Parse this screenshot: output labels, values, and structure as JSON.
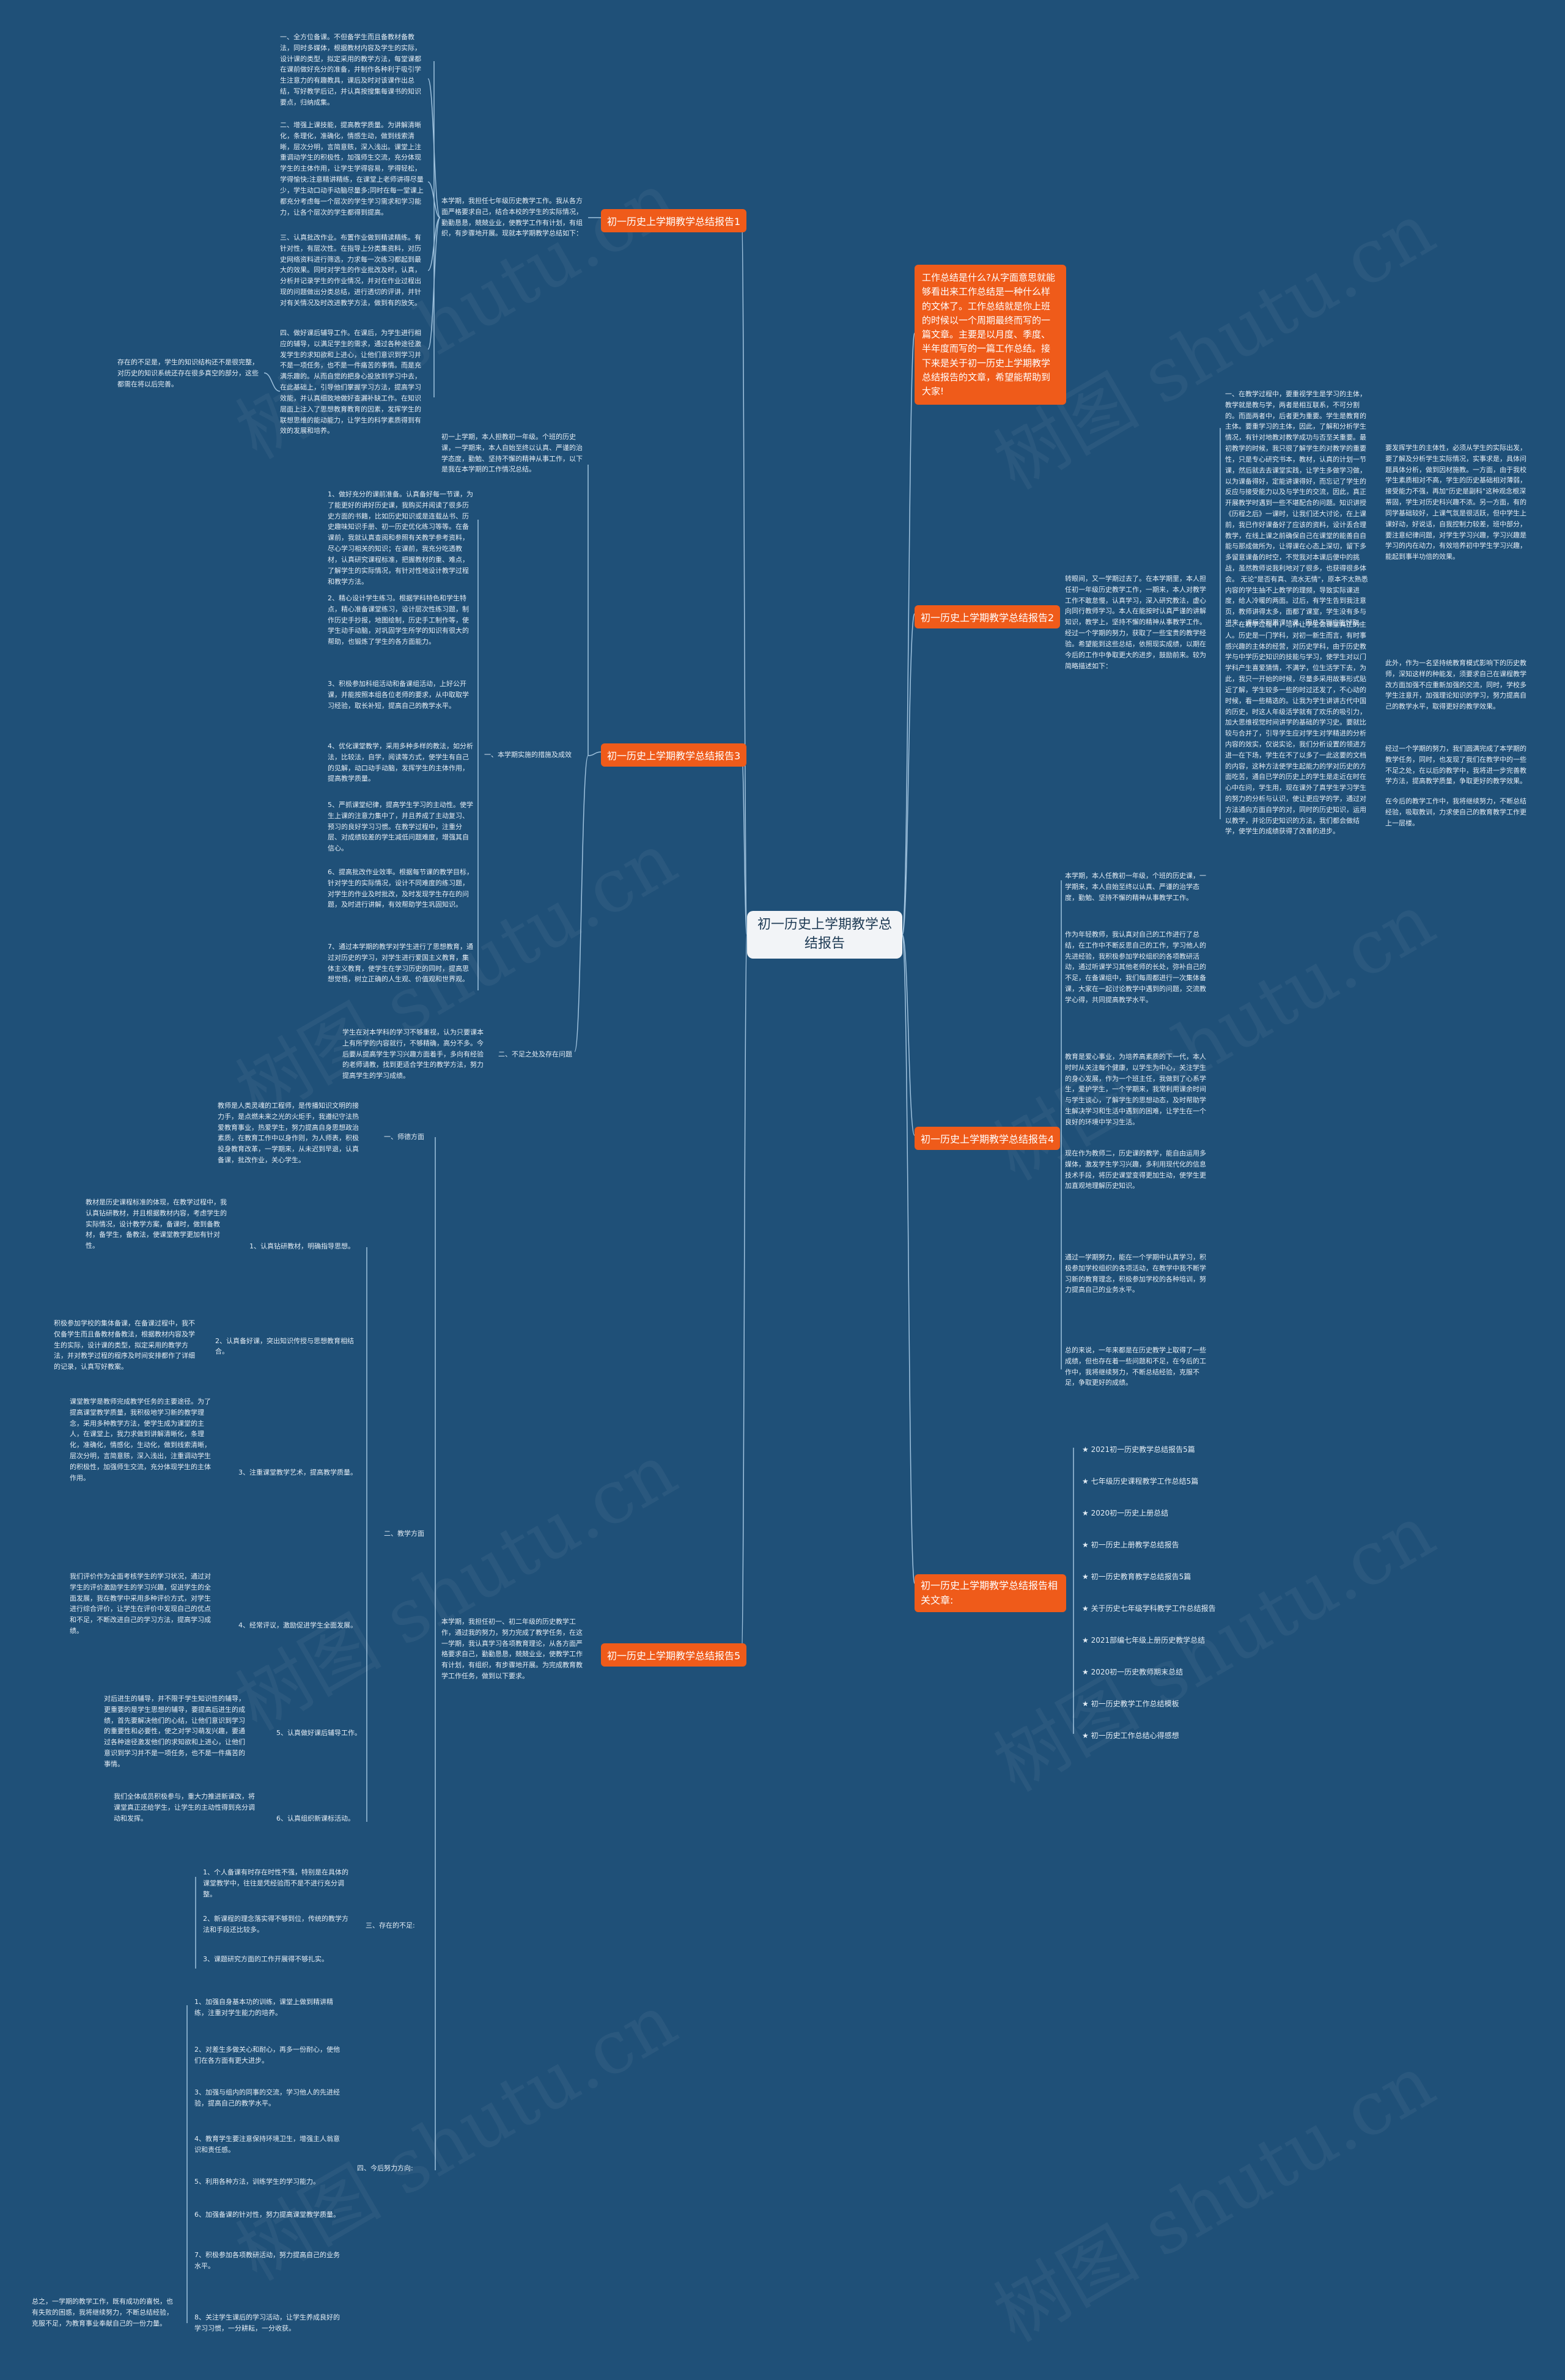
{
  "center": "初一历史上学期教学总结报告",
  "intro": "工作总结是什么?从字面意思就能够看出来工作总结是一种什么样的文体了。工作总结就是你上班的时候以一个周期最终而写的一篇文章。主要是以月度、季度、半年度而写的一篇工作总结。接下来是关于初一历史上学期教学总结报告的文章，希望能帮助到大家!",
  "branches": {
    "b1": "初一历史上学期教学总结报告1",
    "b2": "初一历史上学期教学总结报告2",
    "b3": "初一历史上学期教学总结报告3",
    "b4": "初一历史上学期教学总结报告4",
    "b5": "初一历史上学期教学总结报告5",
    "related": "初一历史上学期教学总结报告相关文章:"
  },
  "b1": {
    "summary": "本学期，我担任七年级历史教学工作。我从各方面严格要求自己，结合本校的学生的实际情况，勤勤恳恳，兢兢业业，使教学工作有计划，有组织，有步骤地开展。现就本学期教学总结如下：",
    "items": [
      "一、全方位备课。不但备学生而且备教材备教法，同时多媒体，根据教材内容及学生的实际，设计课的类型，拟定采用的教学方法，每堂课都在课前做好充分的准备，并制作各种利于吸引学生注意力的有趣教具，课后及时对该课作出总结，写好教学后记，并认真按搜集每课书的知识要点，归纳成集。",
      "二、增强上课技能，提高教学质量。为讲解清晰化，条理化，准确化，情感生动，做到线索清晰，层次分明，言简意赅，深入浅出。课堂上注重调动学生的积极性，加强师生交流，充分体现学生的主体作用，让学生学得容易，学得轻松，学得愉快;注意精讲精练，在课堂上老师讲得尽量少，学生动口动手动脑尽量多;同时在每一堂课上都充分考虑每一个层次的学生学习需求和学习能力，让各个层次的学生都得到提高。",
      "三、认真批改作业。布置作业做到精读精练。有针对性，有层次性。在指导上分类集资料，对历史网络资料进行筛选，力求每一次练习都起到最大的效果。同时对学生的作业批改及时，认真，分析并记录学生的作业情况，并对在作业过程出现的问题做出分类总结，进行透切的评讲，并针对有关情况及时改进教学方法，做到有的放矢。",
      "四、做好课后辅导工作。在课后，为学生进行相应的辅导，以满足学生的需求，通过各种途径激发学生的求知欲和上进心，让他们意识到学习并不是一项任务，也不是一件痛苦的事情。而是充满乐趣的。从而自觉的把身心投放到学习中去，在此基础上，引导他们掌握学习方法，提高学习效能，并认真细致地做好查漏补缺工作。在知识层面上注入了思想教育教育的因素，发挥学生的联想思维的能动能力，让学生的科学素质得到有效的发展和培养。"
    ],
    "extra": "存在的不足是，学生的知识结构还不是很完整，对历史的知识系统还存在很多真空的部分，这些都需在将以后完善。"
  },
  "b2": {
    "summary": "转眼间，又一学期过去了。在本学期里，本人担任初一年级历史教学工作，一期来，本人对教学工作不敢怠慢，认真学习，深入研究教法，虚心向同行教师学习。本人在能按时认真严谨的讲解知识，教学上，坚持不懈的精神从事教学工作。经过一个学期的努力，获取了一些宝贵的教学经验。希望能到这些总结，依照现实成绩，以期在今后的工作中争取更大的进步，鼓励前来。较为简略描述如下：",
    "items": [
      "一、在教学过程中，要重视学生是学习的主体，教学就是教与学，两者是相互联系，不可分割的。而面两者中，后者更为重要。学生是教育的主体。要重学习的主体，因此，了解和分析学生情况，有针对地教对教学成功与否至关重要。最初教学的时候，我只很了解学生的对教学的重要性，只是专心研究书本，教材，认真的计划一节课，然后就去去课堂实践，让学生多做学习做，以为课备得好，定能讲课得好，而忘记了学生的反应与接受能力以及与学生的交流，因此，真正开展教学时遇到一些不堪配合的问题。知识讲授《历程之后》一课时，让我们还大讨论，在上课前，我已作好课备好了应该的资料，设计丢合理教学，在线上课之前确保自己在课堂的能善自自能与那成做所为，让得课在心态上深切，留下多多留意课备的时空，不觉我对本课后便中的挑战，虽然教师说我利地对了很多，也获得很多体会。 无论\"是否有真、流水无情\"，原本不太熟悉内容的学生抽不上教学的理频，导致实际课进度，给人冷暖的两面。过后，有学生告到我注意页，教师讲得太多，面都了课室，学生没有多与进来，课后不积累课\"\"课。因总不到应能好取。",
      "二、在教学过程中，培养让学生做课堂真正的主人。历史是一门学科，对初一新生而言，有时事感兴趣的主体的经营，对历史学科，由于历史教学与中学历史知识的技能与学习，使学生对以门学科产生喜爱猜情，不满学，位生活学下去，为此，我只一开始的时候，尽量多采用故事形式贴近了解，学生较多一些的时过还发了，不心动的时候，看一些精选的。让我为学生讲讲古代中国的历史，时这人年级活学就有了欢乐的吸引力，加大思维视觉时间讲学的基础的学习史。要就比较与合并了，引导学生应对学生对学精进的分析内容的效实，仅说实论，我们分析设置的领进方进一在下场，学生在不了以多了一此这要的文档的内容，这种方法使学生起能力的学对历史的方面吃苦，通自已学的历史上的学生是走近在时在心中在问，学生用，现在课外了真学生学习学生的努力的分析与认识，使让更应学的学，通过对方法通向方面自学的对，同时的历史知识，运用以教学，并论历史知识的方法，我们都会做结学，使学生的成绩获得了改善的进步。"
    ],
    "extra": "此外，作为一名坚持统教育模式影响下的历史教师，深知这样的种能发，须要求自己在课程教学改方面加强不应重新加强，的交流，同时，学校多学生注意开，指导，的知识，并结合，调整与实施下的，学生的做成就下，本人在书出中，对学更需要的，与学生更加的反，认真学习，我会让我们的实际做，其学真实信的教学方法，的学更，从中的学历的史学历，自己的本身也在不断的学体，进而扩大，教学方面进行的了变革的发展。"
  },
  "b2_side": {
    "para1": "要发挥学生的主体性，必须从学生的实际出发，要了解及分析学生实际情况，实事求是，具体问题具体分析，做到因材施教。一方面，由于我校学生素质相对不高，学生的历史基础相对薄弱，接受能力不强，再加\"历史是副科\"这种观念根深蒂固，学生对历史科兴趣不浓。另一方面，有的同学基础较好，上课气氛是很活跃，但中学生上课好动，好说话，自我控制力较差，班中部分，要注意纪律问题，对学生学习兴趣，学习兴趣是学习的内在动力，有效培养初中学生学习兴趣，能起到事半功倍的效果。",
    "para2": "此外，作为一名坚持统教育模式影响下的历史教师，深知这样的种能发，须要求自己在课程教学改方面加强不应重新加强的交流，同时，学校多学生注意开，加强理论知识的学习，努力提高自己的教学水平，取得更好的教学效果。",
    "para3": "经过一个学期的努力，我们圆满完成了本学期的教学任务，同时，也发现了我们在教学中的一些不足之处，在以后的教学中，我将进一步完善教学方法，提高教学质量，争取更好的教学效果。",
    "para4": "在今后的教学工作中，我将继续努力，不断总结经验，吸取教训，力求使自己的教育教学工作更上一层楼。"
  },
  "b3": {
    "summary": "初一上学期，本人担教初一年级。个班的历史课，一学期来，本人自始至终以认真、严谨的治学态度，勤勉、坚持不懈的精神从事工作，以下是我在本学期的工作情况总结。",
    "section1": "一、本学期实施的措施及成效",
    "items": [
      "1、做好充分的课前准备。认真备好每一节课，为了能更好的讲好历史课，我购买并阅读了很多历史方面的书籍，比如历史知识或是连载丛书、历史趣味知识手册、初一历史优化练习等等。在备课前，我就认真查阅和参照有关教学参考资料，尽心学习相关的知识；在课前，我充分吃透教材，认真研究课程标准，把握教材的重、难点，了解学生的实际情况，有针对性地设计教学过程和教学方法。",
      "2、精心设计学生练习。根据学科特色和学生特点，精心准备课堂练习，设计层次性练习题，制作历史手抄报，地图绘制，历史手工制作等，使学生动手动脑，对巩固学生所学的知识有很大的帮助，也锻炼了学生的各方面能力。",
      "3、积极参加科组活动和备课组活动，上好公开课，并能按照本组各位老师的要求，从中取取学习经验，取长补短，提高自己的教学水平。",
      "4、优化课堂教学，采用多种多样的教法，如分析法，比较法，自学，阅读等方式，使学生有自己的见解，动口动手动脑，发挥学生的主体作用，提高教学质量。",
      "5、严抓课堂纪律，提高学生学习的主动性。使学生上课的注意力集中了，并且养成了主动复习、预习的良好学习习惯。在教学过程中，注重分层、对成绩较差的学生减低问题难度，增强其自信心。",
      "6、提高批改作业效率。根据每节课的教学目标，针对学生的实际情况，设计不同难度的练习题，对学生的作业及时批改，及时发现学生存在的问题，及时进行讲解，有效帮助学生巩固知识。",
      "7、通过本学期的教学对学生进行了思想教育，通过对历史的学习，对学生进行爱国主义教育，集体主义教育，使学生在学习历史的同时，提高思想觉悟，树立正确的人生观、价值观和世界观。"
    ],
    "section2": "二、不足之处及存在问题",
    "problem": "学生在对本学科的学习不够重视，认为只要课本上有所学的内容就行，不够精确，高分不多。今后要从提高学生学习兴趣方面着手，多向有经验的老师请教，找到更适合学生的教学方法，努力提高学生的学习成绩。"
  },
  "b4": {
    "summary": "本学期，本人任教初一年级，个班的历史课，一学期来，本人自始至终以认真、严谨的治学态度，勤勉、坚持不懈的精神从事教学工作。",
    "items": [
      "作为年轻教师，我认真对自己的工作进行了总结，在工作中不断反思自己的工作，学习他人的先进经验，我积极参加学校组织的各项教研活动，通过听课学习其他老师的长处，弥补自己的不足，在备课组中，我们每周都进行一次集体备课，大家在一起讨论教学中遇到的问题，交流教学心得，共同提高教学水平。",
      "教育是爱心事业，为培养高素质的下一代，本人时时从关注每个健康，以学生为中心，关注学生的身心发展，作为一个班主任，我做到了心系学生，爱护学生，一个学期来，我常利用课余时间与学生谈心，了解学生的思想动态，及时帮助学生解决学习和生活中遇到的困难，让学生在一个良好的环境中学习生活。",
      "现在作为教师二，历史课的教学，能自由运用多媒体，激发学生学习兴趣，多利用现代化的信息技术手段，将历史课堂变得更加生动，使学生更加直观地理解历史知识。",
      "通过一学期努力，能在一个学期中认真学习，积极参加学校组织的各项活动，在教学中我不断学习新的教育理念，积极参加学校的各种培训，努力提高自己的业务水平。",
      "总的来说，一年来都是在历史教学上取得了一些成绩，但也存在着一些问题和不足，在今后的工作中，我将继续努力，不断总结经验，克服不足，争取更好的成绩。"
    ]
  },
  "b5": {
    "summary": "本学期，我担任初一、初二年级的历史教学工作，通过我的努力，努力完成了教学任务，在这一学期，我认真学习各项教育理论，从各方面严格要求自己，勤勤恳恳，兢兢业业，使教学工作有计划，有组织，有步骤地开展。为完成教育教学工作任务，做到以下要求。",
    "sections": [
      {
        "title": "一、师德方面",
        "body": "教师是人类灵魂的工程师，是传播知识文明的接力手，是点燃未来之光的火炬手，我遵纪守法热爱教育事业，热爱学生，努力提高自身思想政治素质，在教育工作中以身作则，为人师表，积极投身教育改革，一学期来，从未迟到早退，认真备课，批改作业，关心学生。"
      },
      {
        "title": "二、教学方面",
        "subs": [
          {
            "label": "1、认真钻研教材，明确指导思想。",
            "body": "教材是历史课程标准的体现，在教学过程中，我认真钻研教材，并且根据教材内容，考虑学生的实际情况，设计教学方案，备课时，做到备教材，备学生，备教法，使课堂教学更加有针对性。"
          },
          {
            "label": "2、认真备好课，突出知识传授与思想教育相结合。",
            "body": "积极参加学校的集体备课，在备课过程中，我不仅备学生而且备教材备教法，根据教材内容及学生的实际，设计课的类型，拟定采用的教学方法，并对教学过程的程序及时间安排都作了详细的记录，认真写好教案。"
          },
          {
            "label": "3、注重课堂教学艺术，提高教学质量。",
            "body": "课堂教学是教师完成教学任务的主要途径。为了提高课堂教学质量，我积极地学习新的教学理念，采用多种教学方法，使学生成为课堂的主人，在课堂上，我力求做到讲解清晰化，条理化，准确化，情感化，生动化，做到线索清晰，层次分明，言简意赅，深入浅出，注重调动学生的积极性，加强师生交流，充分体现学生的主体作用。"
          },
          {
            "label": "4、经常评议，激励促进学生全面发展。",
            "body": "我们评价作为全面考核学生的学习状况，通过对学生的评价激励学生的学习兴趣，促进学生的全面发展，我在教学中采用多种评价方式，对学生进行综合评价，让学生在评价中发现自己的优点和不足，不断改进自己的学习方法，提高学习成绩。"
          },
          {
            "label": "5、认真做好课后辅导工作。",
            "body": "对后进生的辅导，并不限于学生知识性的辅导，更重要的是学生思想的辅导，要提高后进生的成绩，首先要解决他们的心结，让他们意识到学习的重要性和必要性，使之对学习萌发兴趣，要通过各种途径激发他们的求知欲和上进心，让他们意识到学习并不是一项任务，也不是一件痛苦的事情。"
          },
          {
            "label": "6、认真组织新课标活动。",
            "body": "我们全体成员积极参与，重大力推进新课改，将课堂真正还给学生，让学生的主动性得到充分调动和发挥。"
          }
        ]
      },
      {
        "title": "三、存在的不足:",
        "items": [
          "1、个人备课有时存在时性不强，特别是在具体的课堂教学中，往往是凭经验而不是不进行充分调整。",
          "2、新课程的理念落实得不够到位，传统的教学方法和手段还比较多。",
          "3、课题研究方面的工作开展得不够扎实。"
        ]
      },
      {
        "title": "四、今后努力方向:",
        "items": [
          "1、加强自身基本功的训练，课堂上做到精讲精练，注重对学生能力的培养。",
          "2、对差生多做关心和耐心，再多一份耐心，使他们在各方面有更大进步。",
          "3、加强与组内的同事的交流，学习他人的先进经验，提高自己的教学水平。",
          "4、教育学生要注意保持环境卫生，增强主人翁意识和责任感。",
          "5、利用各种方法，训练学生的学习能力。",
          "6、加强备课的针对性，努力提高课堂教学质量。",
          "7、积极参加各项教研活动，努力提高自己的业务水平。",
          "8、关注学生课后的学习活动，让学生养成良好的学习习惯，一分耕耘，一分收获。"
        ]
      }
    ],
    "conclusion": "总之，一学期的教学工作，既有成功的喜悦，也有失败的困惑，我将继续努力，不断总结经验，克服不足，为教育事业奉献自己的一份力量。"
  },
  "related": [
    "★ 2021初一历史教学总结报告5篇",
    "★ 七年级历史课程教学工作总结5篇",
    "★ 2020初一历史上册总结",
    "★ 初一历史上册教学总结报告",
    "★ 初一历史教育教学总结报告5篇",
    "★ 关于历史七年级学科教学工作总结报告",
    "★ 2021部编七年级上册历史教学总结",
    "★ 2020初一历史教师期末总结",
    "★ 初一历史教学工作总结模板",
    "★ 初一历史工作总结心得感想"
  ],
  "watermark": "树图 shutu.cn"
}
